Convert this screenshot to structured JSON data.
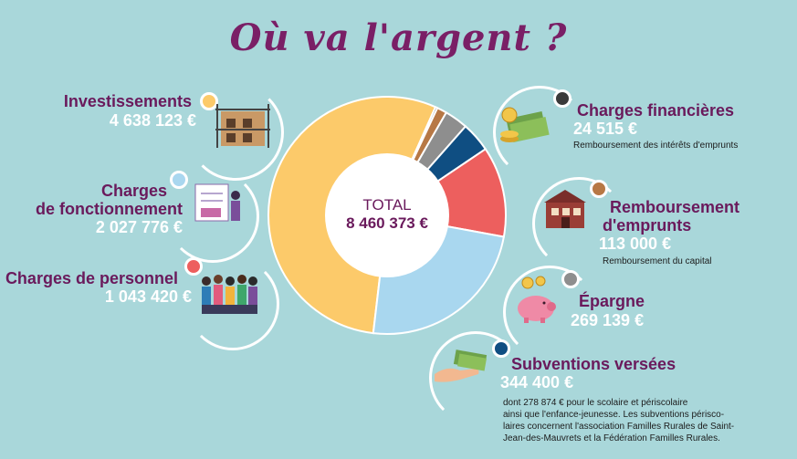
{
  "title": "Où va l'argent ?",
  "center": {
    "label": "TOTAL",
    "value": "8 460 373 €"
  },
  "items": {
    "investissements": {
      "label": "Investissements",
      "value": "4 638 123 €",
      "color": "#fcca6a"
    },
    "fonctionnement": {
      "label_l1": "Charges",
      "label_l2": "de fonctionnement",
      "value": "2 027 776 €",
      "color": "#a9d7ef"
    },
    "personnel": {
      "label": "Charges de personnel",
      "value": "1 043 420 €",
      "color": "#ed5f5e"
    },
    "financieres": {
      "label": "Charges financières",
      "value": "24 515 €",
      "note": "Remboursement des intérêts d'emprunts",
      "color": "#3a3a3a"
    },
    "emprunts": {
      "label_l1": "Remboursement",
      "label_l2": "d'emprunts",
      "value": "113 000 €",
      "note": "Remboursement du capital",
      "color": "#b77845"
    },
    "epargne": {
      "label": "Épargne",
      "value": "269 139 €",
      "color": "#8e8e8e"
    },
    "subventions": {
      "label": "Subventions versées",
      "value": "344 400 €",
      "note_l1": "dont 278 874 € pour le scolaire et périscolaire",
      "note_l2": "ainsi que l'enfance-jeunesse. Les subventions périsco-",
      "note_l3": "laires concernent l'association Familles Rurales de Saint-",
      "note_l4": "Jean-des-Mauvrets et la Fédération Familles Rurales.",
      "color": "#0f4e82"
    }
  },
  "chart_data": {
    "type": "pie",
    "donut": true,
    "categories": [
      "Investissements",
      "Charges financières",
      "Remboursement d'emprunts",
      "Épargne",
      "Subventions versées",
      "Charges de personnel",
      "Charges de fonctionnement"
    ],
    "values": [
      4638123,
      24515,
      113000,
      269139,
      344400,
      1043420,
      2027776
    ],
    "colors": [
      "#fcca6a",
      "#3a3a3a",
      "#b77845",
      "#8e8e8e",
      "#0f4e82",
      "#ed5f5e",
      "#a9d7ef"
    ],
    "total": 8460373
  }
}
